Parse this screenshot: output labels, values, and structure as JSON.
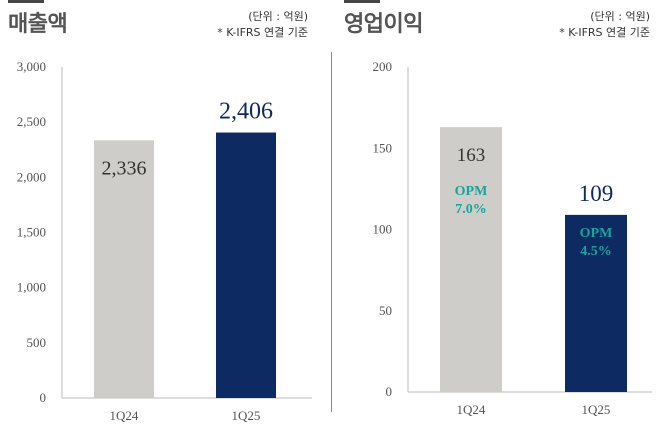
{
  "chart_data": [
    {
      "type": "bar",
      "title": "매출액",
      "unit_note": "(단위 : 억원)",
      "basis_note": "* K-IFRS 연결 기준",
      "categories": [
        "1Q24",
        "1Q25"
      ],
      "values": [
        2336,
        2406
      ],
      "value_labels": [
        "2,336",
        "2,406"
      ],
      "ylim": [
        0,
        3000
      ],
      "yticks": [
        0,
        500,
        1000,
        1500,
        2000,
        2500,
        3000
      ],
      "ytick_labels": [
        "0",
        "500",
        "1,000",
        "1,500",
        "2,000",
        "2,500",
        "3,000"
      ],
      "bar_colors": [
        "#cfcdc9",
        "#0e2a63"
      ],
      "xlabel": "",
      "ylabel": ""
    },
    {
      "type": "bar",
      "title": "영업이익",
      "unit_note": "(단위 : 억원)",
      "basis_note": "* K-IFRS 연결 기준",
      "categories": [
        "1Q24",
        "1Q25"
      ],
      "values": [
        163,
        109
      ],
      "value_labels": [
        "163",
        "109"
      ],
      "annotations": [
        {
          "line1": "OPM",
          "line2": "7.0%"
        },
        {
          "line1": "OPM",
          "line2": "4.5%"
        }
      ],
      "ylim": [
        0,
        200
      ],
      "yticks": [
        0,
        50,
        100,
        150,
        200
      ],
      "ytick_labels": [
        "0",
        "50",
        "100",
        "150",
        "200"
      ],
      "bar_colors": [
        "#cfcdc9",
        "#0e2a63"
      ],
      "xlabel": "",
      "ylabel": ""
    }
  ]
}
